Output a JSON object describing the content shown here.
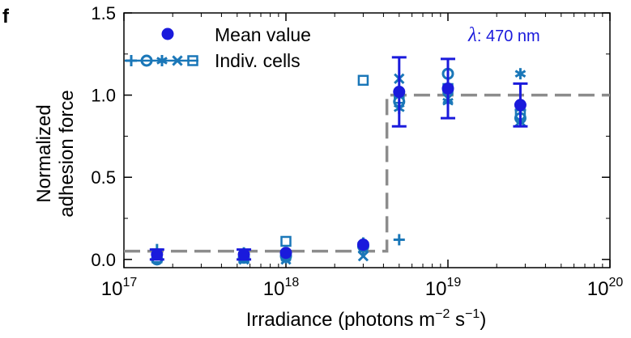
{
  "chart_data": {
    "type": "scatter",
    "panel_label": "f",
    "annotation": {
      "symbol": "λ",
      "text": ": 470 nm"
    },
    "xlabel": "Irradiance (photons m",
    "xlabel_exp1": "−2",
    "xlabel_mid": " s",
    "xlabel_exp2": "−1",
    "xlabel_end": ")",
    "ylabel_line1": "Normalized",
    "ylabel_line2": "adhesion force",
    "x_scale": "log",
    "xlim": [
      1e+17,
      1e+20
    ],
    "ylim": [
      -0.05,
      1.5
    ],
    "x_ticks": [
      {
        "value": 1e+17,
        "base": "10",
        "exp": "17"
      },
      {
        "value": 1e+18,
        "base": "10",
        "exp": "18"
      },
      {
        "value": 1e+19,
        "base": "10",
        "exp": "19"
      },
      {
        "value": 1e+20,
        "base": "10",
        "exp": "20"
      }
    ],
    "y_ticks": [
      {
        "value": 0.0,
        "label": "0.0"
      },
      {
        "value": 0.5,
        "label": "0.5"
      },
      {
        "value": 1.0,
        "label": "1.0"
      },
      {
        "value": 1.5,
        "label": "1.5"
      }
    ],
    "legend": {
      "position": "top-left",
      "mean_label": "Mean value",
      "indiv_label": "Indiv. cells"
    },
    "colors": {
      "mean": "#1a1adc",
      "indiv": "#1a77b8",
      "step": "#8c8c8c",
      "axis": "#000000"
    },
    "step_line": {
      "low": 0.05,
      "high": 1.0,
      "step_x": 4.2e+18
    },
    "mean_series": [
      {
        "x": 1.6e+17,
        "y": 0.03,
        "err": 0.03
      },
      {
        "x": 5.5e+17,
        "y": 0.03,
        "err": 0.03
      },
      {
        "x": 1e+18,
        "y": 0.04,
        "err": 0.0
      },
      {
        "x": 3e+18,
        "y": 0.09,
        "err": 0.0
      },
      {
        "x": 5e+18,
        "y": 1.02,
        "err": 0.21
      },
      {
        "x": 1e+19,
        "y": 1.04,
        "err": 0.18
      },
      {
        "x": 2.8e+19,
        "y": 0.94,
        "err": 0.13
      }
    ],
    "indiv_series": [
      {
        "name": "+",
        "marker": "plus",
        "x": [
          1.6e+17,
          5.5e+17,
          1e+18,
          3e+18,
          5e+18,
          1e+19,
          2.8e+19
        ],
        "y": [
          0.06,
          0.04,
          0.03,
          0.1,
          0.12,
          1.03,
          0.91
        ]
      },
      {
        "name": "○",
        "marker": "circle",
        "x": [
          1.6e+17,
          5.5e+17,
          1e+18,
          3e+18,
          5e+18,
          1e+19,
          2.8e+19
        ],
        "y": [
          0.0,
          0.01,
          0.02,
          0.08,
          0.96,
          1.13,
          0.86
        ]
      },
      {
        "name": "✱",
        "marker": "asterisk",
        "x": [
          1.6e+17,
          5.5e+17,
          1e+18,
          3e+18,
          5e+18,
          1e+19,
          2.8e+19
        ],
        "y": [
          0.03,
          0.02,
          0.01,
          0.06,
          0.92,
          0.96,
          1.13
        ]
      },
      {
        "name": "×",
        "marker": "cross",
        "x": [
          1.6e+17,
          5.5e+17,
          1e+18,
          3e+18,
          5e+18,
          1e+19,
          2.8e+19
        ],
        "y": [
          0.02,
          0.0,
          0.0,
          0.02,
          1.1,
          0.98,
          0.84
        ]
      },
      {
        "name": "□",
        "marker": "square",
        "x": [
          1.6e+17,
          5.5e+17,
          1e+18,
          3e+18,
          5e+18,
          1e+19,
          2.8e+19
        ],
        "y": [
          0.01,
          0.01,
          0.11,
          1.09,
          0.98,
          1.04,
          0.88
        ]
      }
    ]
  }
}
